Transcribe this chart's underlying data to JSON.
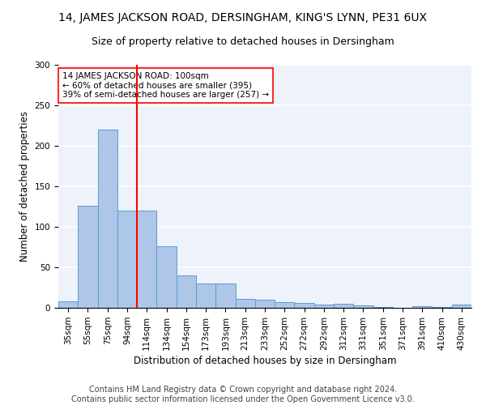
{
  "title1": "14, JAMES JACKSON ROAD, DERSINGHAM, KING'S LYNN, PE31 6UX",
  "title2": "Size of property relative to detached houses in Dersingham",
  "xlabel": "Distribution of detached houses by size in Dersingham",
  "ylabel": "Number of detached properties",
  "categories": [
    "35sqm",
    "55sqm",
    "75sqm",
    "94sqm",
    "114sqm",
    "134sqm",
    "154sqm",
    "173sqm",
    "193sqm",
    "213sqm",
    "233sqm",
    "252sqm",
    "272sqm",
    "292sqm",
    "312sqm",
    "331sqm",
    "351sqm",
    "371sqm",
    "391sqm",
    "410sqm",
    "430sqm"
  ],
  "values": [
    8,
    126,
    220,
    120,
    120,
    76,
    40,
    30,
    30,
    11,
    10,
    7,
    6,
    4,
    5,
    3,
    1,
    0,
    2,
    1,
    4
  ],
  "bar_color": "#aec6e8",
  "bar_edge_color": "#5b9bd5",
  "vline_x_index": 4,
  "vline_color": "red",
  "annotation_line1": "14 JAMES JACKSON ROAD: 100sqm",
  "annotation_line2": "← 60% of detached houses are smaller (395)",
  "annotation_line3": "39% of semi-detached houses are larger (257) →",
  "annotation_box_color": "white",
  "annotation_box_edge": "red",
  "ylim": [
    0,
    300
  ],
  "yticks": [
    0,
    50,
    100,
    150,
    200,
    250,
    300
  ],
  "footer1": "Contains HM Land Registry data © Crown copyright and database right 2024.",
  "footer2": "Contains public sector information licensed under the Open Government Licence v3.0.",
  "background_color": "#eef2fb",
  "title1_fontsize": 10,
  "title2_fontsize": 9,
  "axis_label_fontsize": 8.5,
  "tick_fontsize": 7.5,
  "annotation_fontsize": 7.5,
  "footer_fontsize": 7
}
